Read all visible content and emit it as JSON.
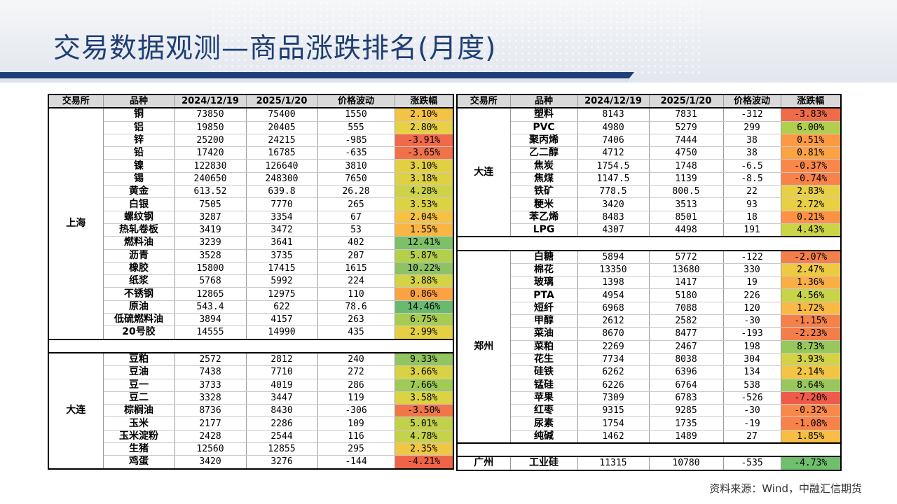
{
  "title": "交易数据观测—商品涨跌排名(月度)",
  "source": "资料来源：Wind，中融汇信期货",
  "headers": [
    "交易所",
    "品种",
    "2024/12/19",
    "2025/1/20",
    "价格波动",
    "涨跌幅"
  ],
  "left_table": [
    {
      "exchange": "上海",
      "rows": [
        [
          "铜",
          "73850",
          "75400",
          "1550",
          "2.10%",
          "#f5c344"
        ],
        [
          "铝",
          "19850",
          "20405",
          "555",
          "2.80%",
          "#e7d043"
        ],
        [
          "锌",
          "25200",
          "24215",
          "-985",
          "-3.91%",
          "#f0694a"
        ],
        [
          "铅",
          "17420",
          "16785",
          "-635",
          "-3.65%",
          "#f0714a"
        ],
        [
          "镍",
          "122830",
          "126640",
          "3810",
          "3.10%",
          "#e2d043"
        ],
        [
          "锡",
          "240650",
          "248300",
          "7650",
          "3.18%",
          "#e0d143"
        ],
        [
          "黄金",
          "613.52",
          "639.8",
          "26.28",
          "4.28%",
          "#cdd346"
        ],
        [
          "白银",
          "7505",
          "7770",
          "265",
          "3.53%",
          "#dbd244"
        ],
        [
          "螺纹钢",
          "3287",
          "3354",
          "67",
          "2.04%",
          "#f5c244"
        ],
        [
          "热轧卷板",
          "3419",
          "3472",
          "53",
          "1.55%",
          "#f9b644"
        ],
        [
          "燃料油",
          "3239",
          "3641",
          "402",
          "12.41%",
          "#7cc068"
        ],
        [
          "沥青",
          "3528",
          "3735",
          "207",
          "5.87%",
          "#b5cf4d"
        ],
        [
          "橡胶",
          "15800",
          "17415",
          "1615",
          "10.22%",
          "#8dc362"
        ],
        [
          "纸浆",
          "5768",
          "5992",
          "224",
          "3.88%",
          "#d4d245"
        ],
        [
          "不锈钢",
          "12865",
          "12975",
          "110",
          "0.86%",
          "#fba344"
        ],
        [
          "原油",
          "543.4",
          "622",
          "78.6",
          "14.46%",
          "#68bb6e"
        ],
        [
          "低硫燃料油",
          "3894",
          "4157",
          "263",
          "6.75%",
          "#a8cc51"
        ],
        [
          "20号胶",
          "14555",
          "14990",
          "435",
          "2.99%",
          "#e5d043"
        ]
      ]
    },
    {
      "exchange": "大连",
      "rows": [
        [
          "豆粕",
          "2572",
          "2812",
          "240",
          "9.33%",
          "#93c55e"
        ],
        [
          "豆油",
          "7438",
          "7710",
          "272",
          "3.66%",
          "#d9d244"
        ],
        [
          "豆一",
          "3733",
          "4019",
          "286",
          "7.66%",
          "#a0ca55"
        ],
        [
          "豆二",
          "3328",
          "3447",
          "119",
          "3.58%",
          "#dbd244"
        ],
        [
          "棕榈油",
          "8736",
          "8430",
          "-306",
          "-3.50%",
          "#f07549"
        ],
        [
          "玉米",
          "2177",
          "2286",
          "109",
          "5.01%",
          "#c2d14a"
        ],
        [
          "玉米淀粉",
          "2428",
          "2544",
          "116",
          "4.78%",
          "#c6d249"
        ],
        [
          "生猪",
          "12560",
          "12855",
          "295",
          "2.35%",
          "#f0c744"
        ],
        [
          "鸡蛋",
          "3420",
          "3276",
          "-144",
          "-4.21%",
          "#ef6349"
        ]
      ]
    }
  ],
  "right_table": [
    {
      "exchange": "大连",
      "rows": [
        [
          "塑料",
          "8143",
          "7831",
          "-312",
          "-3.83%",
          "#f06b4a"
        ],
        [
          "PVC",
          "4980",
          "5279",
          "299",
          "6.00%",
          "#b2ce4e"
        ],
        [
          "聚丙烯",
          "7406",
          "7444",
          "38",
          "0.51%",
          "#fc9a44"
        ],
        [
          "乙二醇",
          "4712",
          "4750",
          "38",
          "0.81%",
          "#fba244"
        ],
        [
          "焦炭",
          "1754.5",
          "1748",
          "-6.5",
          "-0.37%",
          "#f9874a"
        ],
        [
          "焦煤",
          "1147.5",
          "1139",
          "-8.5",
          "-0.74%",
          "#f9824a"
        ],
        [
          "铁矿",
          "778.5",
          "800.5",
          "22",
          "2.83%",
          "#e7d043"
        ],
        [
          "粳米",
          "3420",
          "3513",
          "93",
          "2.72%",
          "#e9cf43"
        ],
        [
          "苯乙烯",
          "8483",
          "8501",
          "18",
          "0.21%",
          "#fd9244"
        ],
        [
          "LPG",
          "4307",
          "4498",
          "191",
          "4.43%",
          "#cbd347"
        ]
      ]
    },
    {
      "exchange": "郑州",
      "rows": [
        [
          "白糖",
          "5894",
          "5772",
          "-122",
          "-2.07%",
          "#f37f4a"
        ],
        [
          "棉花",
          "13350",
          "13680",
          "330",
          "2.47%",
          "#edca44"
        ],
        [
          "玻璃",
          "1398",
          "1417",
          "19",
          "1.36%",
          "#faaf44"
        ],
        [
          "PTA",
          "4954",
          "5180",
          "226",
          "4.56%",
          "#c9d348"
        ],
        [
          "短纤",
          "6968",
          "7088",
          "120",
          "1.72%",
          "#f8ba44"
        ],
        [
          "甲醇",
          "2612",
          "2582",
          "-30",
          "-1.15%",
          "#f68149"
        ],
        [
          "菜油",
          "8670",
          "8477",
          "-193",
          "-2.23%",
          "#f37e4a"
        ],
        [
          "菜粕",
          "2269",
          "2467",
          "198",
          "8.73%",
          "#98c75b"
        ],
        [
          "花生",
          "7734",
          "8038",
          "304",
          "3.93%",
          "#d4d245"
        ],
        [
          "硅铁",
          "6262",
          "6396",
          "134",
          "2.14%",
          "#f3c544"
        ],
        [
          "锰硅",
          "6226",
          "6764",
          "538",
          "8.64%",
          "#99c75b"
        ],
        [
          "苹果",
          "7309",
          "6783",
          "-526",
          "-7.20%",
          "#ee5b4b"
        ],
        [
          "红枣",
          "9315",
          "9285",
          "-30",
          "-0.32%",
          "#f9894a"
        ],
        [
          "尿素",
          "1754",
          "1735",
          "-19",
          "-1.08%",
          "#f7824a"
        ],
        [
          "纯碱",
          "1462",
          "1489",
          "27",
          "1.85%",
          "#f7bd44"
        ]
      ]
    },
    {
      "exchange": "广州",
      "rows": [
        [
          "工业硅",
          "11315",
          "10780",
          "-535",
          "-4.73%",
          "#6fbf6c"
        ]
      ]
    }
  ]
}
